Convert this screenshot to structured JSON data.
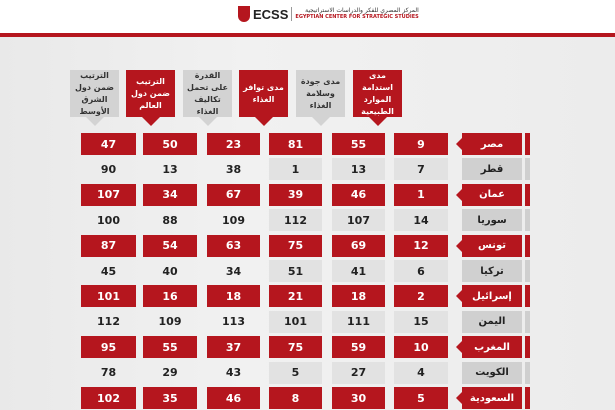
{
  "logo": {
    "name": "ECSS",
    "arabic": "المركز المصري للفكر والدراسات الاستراتيجية",
    "english": "EGYPTIAN CENTER FOR STRATEGIC STUDIES"
  },
  "colors": {
    "accent": "#b5161e",
    "grey": "#d3d3d3"
  },
  "headers": [
    "الترتيب ضمن دول الشرق الأوسط",
    "الترتيب ضمن دول العالم",
    "القدرة على تحمل تكاليف الغذاء",
    "مدى توافر الغذاء",
    "مدى جودة وسلامة الغذاء",
    "مدى استدامة الموارد الطبيعية"
  ],
  "rows": [
    {
      "country": "مصر",
      "values": [
        "47",
        "50",
        "23",
        "81",
        "55",
        "9"
      ]
    },
    {
      "country": "قطر",
      "values": [
        "90",
        "13",
        "38",
        "1",
        "13",
        "7"
      ]
    },
    {
      "country": "عمان",
      "values": [
        "107",
        "34",
        "67",
        "39",
        "46",
        "1"
      ]
    },
    {
      "country": "سوريا",
      "values": [
        "100",
        "88",
        "109",
        "112",
        "107",
        "14"
      ]
    },
    {
      "country": "تونس",
      "values": [
        "87",
        "54",
        "63",
        "75",
        "69",
        "12"
      ]
    },
    {
      "country": "تركيا",
      "values": [
        "45",
        "40",
        "34",
        "51",
        "41",
        "6"
      ]
    },
    {
      "country": "إسرائيل",
      "values": [
        "101",
        "16",
        "18",
        "21",
        "18",
        "2"
      ]
    },
    {
      "country": "اليمن",
      "values": [
        "112",
        "109",
        "113",
        "101",
        "111",
        "15"
      ]
    },
    {
      "country": "المغرب",
      "values": [
        "95",
        "55",
        "37",
        "75",
        "59",
        "10"
      ]
    },
    {
      "country": "الكويت",
      "values": [
        "78",
        "29",
        "43",
        "5",
        "27",
        "4"
      ]
    },
    {
      "country": "السعودية",
      "values": [
        "102",
        "35",
        "46",
        "8",
        "30",
        "5"
      ]
    }
  ]
}
